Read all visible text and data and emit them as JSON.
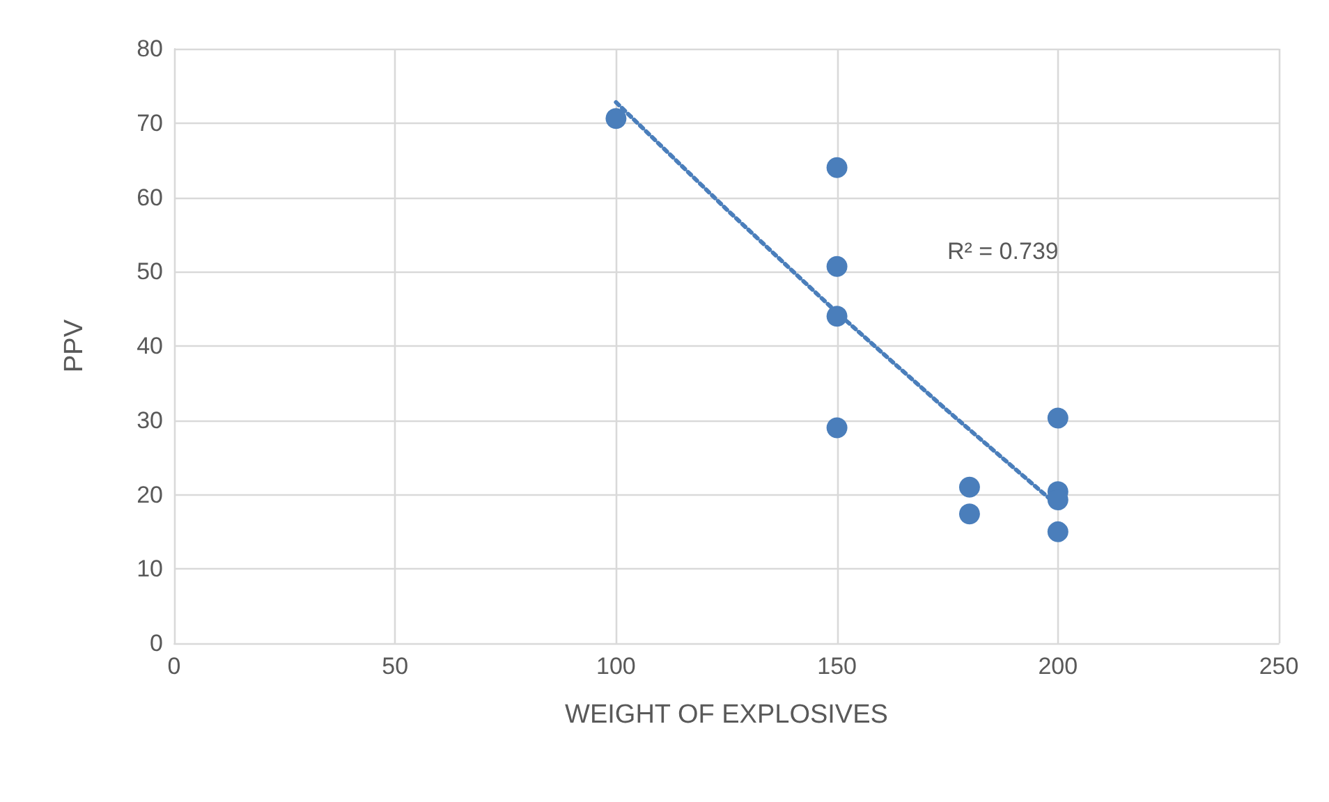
{
  "chart_data": {
    "type": "scatter",
    "xlabel": "WEIGHT OF EXPLOSIVES",
    "ylabel": "PPV",
    "x": [
      100,
      150,
      150,
      150,
      150,
      180,
      180,
      200,
      200,
      200,
      200
    ],
    "series": [
      {
        "color": "#4a7ebb",
        "marker": "circle",
        "values": [
          70.6,
          64.0,
          50.7,
          44.0,
          29.0,
          21.0,
          17.4,
          30.3,
          20.4,
          19.3,
          15.0
        ]
      },
      {
        "type": "line",
        "color": "#4a7ebb",
        "marker": "none",
        "line_style": "dotted",
        "x": [
          100,
          125,
          150,
          175,
          200
        ],
        "values": [
          72.8,
          58.4,
          44.5,
          31.3,
          18.5
        ]
      }
    ],
    "annotations": [
      "R² = 0.739"
    ],
    "xlim": [
      0,
      250
    ],
    "xticks": [
      0,
      50,
      100,
      150,
      200,
      250
    ],
    "ylim": [
      0,
      80
    ],
    "yticks": [
      0,
      10,
      20,
      30,
      40,
      50,
      60,
      70,
      80
    ],
    "grid": true
  }
}
